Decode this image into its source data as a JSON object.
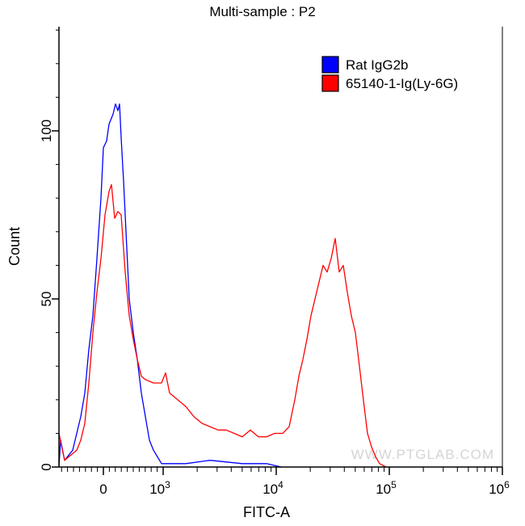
{
  "chart_data": {
    "type": "line",
    "title": "Multi-sample : P2",
    "xlabel": "FITC-A",
    "ylabel": "Count",
    "x_scale": "biexponential",
    "xlim": [
      -743,
      1000000
    ],
    "ylim": [
      0,
      131
    ],
    "x_ticks": [
      {
        "value": 0,
        "label": "0",
        "exp": ""
      },
      {
        "value": 1000,
        "label": "10",
        "exp": "3"
      },
      {
        "value": 10000,
        "label": "10",
        "exp": "4"
      },
      {
        "value": 100000,
        "label": "10",
        "exp": "5"
      },
      {
        "value": 1000000,
        "label": "10",
        "exp": "6"
      }
    ],
    "y_ticks": [
      {
        "value": 0,
        "label": "0"
      },
      {
        "value": 50,
        "label": "50"
      },
      {
        "value": 100,
        "label": "100"
      }
    ],
    "grid": false,
    "legend_position": "top-right",
    "watermark": "WWW.PTGLAB.COM",
    "series": [
      {
        "name": "Rat IgG2b",
        "color": "#0000ff",
        "x": [
          -743,
          -716,
          -649,
          -514,
          -446,
          -378,
          -311,
          -243,
          -176,
          -108,
          -41,
          0,
          54,
          95,
          162,
          203,
          243,
          270,
          297,
          338,
          378,
          432,
          500,
          568,
          635,
          703,
          770,
          838,
          905,
          973,
          1140,
          1585,
          2595,
          5012,
          8210,
          11040
        ],
        "y": [
          0,
          8,
          2,
          5,
          10,
          15,
          22,
          35,
          45,
          62,
          80,
          95,
          97,
          102,
          105,
          108,
          106,
          108,
          98,
          85,
          70,
          50,
          40,
          32,
          22,
          15,
          8,
          5,
          3,
          1,
          1,
          1,
          2,
          1,
          1,
          0
        ]
      },
      {
        "name": "65140-1-Ig(Ly-6G)",
        "color": "#ff0000",
        "x": [
          -743,
          -649,
          -581,
          -446,
          -378,
          -311,
          -243,
          -176,
          -108,
          -41,
          27,
          95,
          135,
          189,
          243,
          297,
          365,
          432,
          500,
          568,
          635,
          703,
          838,
          973,
          1050,
          1140,
          1345,
          1585,
          1868,
          2203,
          2595,
          3060,
          3607,
          4252,
          5012,
          5907,
          6963,
          8210,
          9676,
          11400,
          13010,
          14590,
          15850,
          17210,
          18680,
          20280,
          22030,
          23920,
          25950,
          28180,
          30600,
          33200,
          36070,
          39170,
          42530,
          46150,
          50120,
          54450,
          59020,
          64120,
          69660,
          75680,
          82030,
          93540
        ],
        "y": [
          10,
          2,
          3,
          5,
          8,
          13,
          25,
          40,
          52,
          62,
          75,
          82,
          84,
          74,
          76,
          75,
          58,
          45,
          38,
          32,
          27,
          26,
          25,
          25,
          28,
          22,
          20,
          18,
          15,
          13,
          12,
          11,
          11,
          10,
          9,
          11,
          9,
          9,
          10,
          10,
          12,
          20,
          27,
          32,
          38,
          45,
          50,
          55,
          60,
          58,
          62,
          68,
          58,
          60,
          52,
          45,
          40,
          30,
          20,
          10,
          6,
          3,
          1,
          0
        ]
      }
    ]
  }
}
